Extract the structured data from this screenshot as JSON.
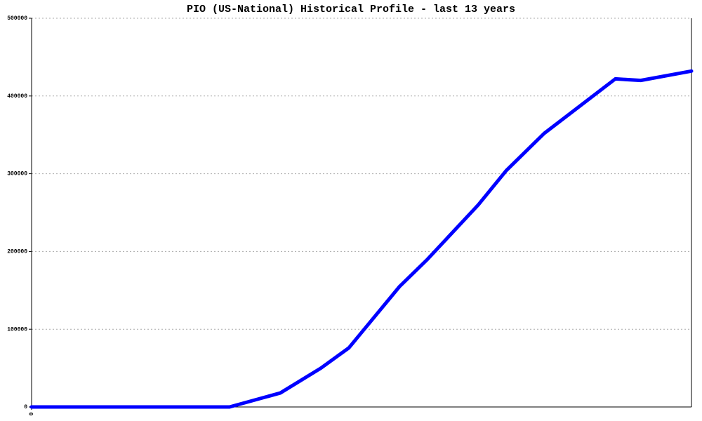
{
  "chart_data": {
    "type": "line",
    "title": "PIO (US-National) Historical Profile - last 13 years",
    "x": [
      0,
      3.9,
      4.9,
      5.7,
      6.25,
      7.25,
      7.8,
      8.8,
      9.35,
      10.1,
      11.5,
      12.0,
      13.0
    ],
    "series": [
      {
        "name": "PIO",
        "color": "#0000ff",
        "values": [
          0,
          0,
          18000,
          50000,
          76000,
          155000,
          190000,
          260000,
          304000,
          352000,
          422000,
          420000,
          432000
        ]
      }
    ],
    "xlim": [
      0,
      13
    ],
    "xticks": [
      0
    ],
    "ylim": [
      0,
      500000
    ],
    "yticks": [
      0,
      100000,
      200000,
      300000,
      400000,
      500000
    ],
    "grid": true
  }
}
